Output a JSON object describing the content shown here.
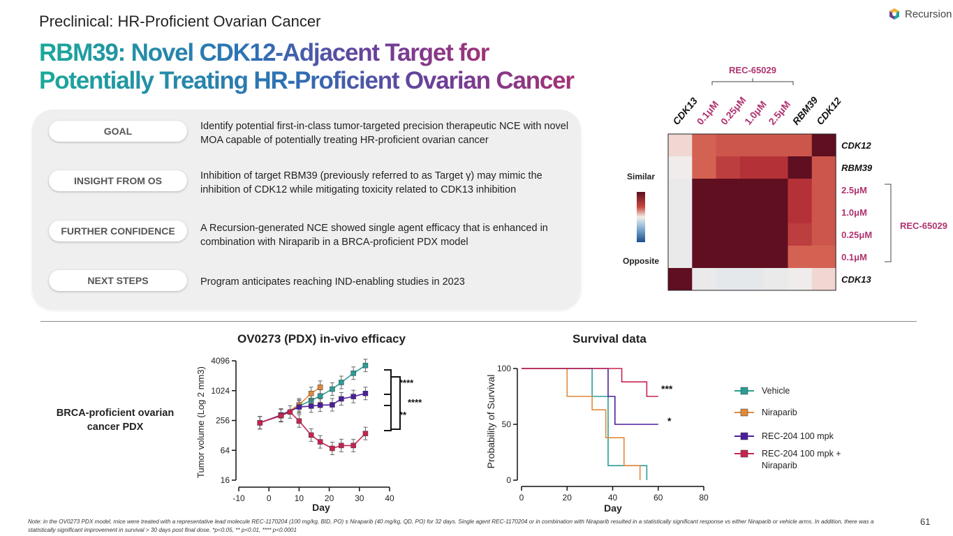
{
  "header": {
    "subtitle": "Preclinical: HR-Proficient Ovarian Cancer",
    "logo_text": "Recursion",
    "title_line1": "RBM39: Novel CDK12-Adjacent Target for",
    "title_line2": "Potentially Treating HR-Proficient Ovarian Cancer"
  },
  "panel": {
    "rows": [
      {
        "label": "GOAL",
        "text": "Identify potential first-in-class tumor-targeted precision therapeutic NCE with novel MOA capable of potentially treating HR-proficient ovarian cancer"
      },
      {
        "label": "INSIGHT FROM OS",
        "text": "Inhibition of target RBM39 (previously referred to as Target γ) may mimic the inhibition of CDK12 while mitigating toxicity related to CDK13 inhibition"
      },
      {
        "label": "FURTHER CONFIDENCE",
        "text": "A Recursion-generated NCE showed single agent efficacy that is enhanced in combination with Niraparib in a BRCA-proficient PDX model"
      },
      {
        "label": "NEXT STEPS",
        "text": "Program anticipates reaching IND-enabling studies in 2023"
      }
    ]
  },
  "sections": {
    "efficacy_title": "OV0273 (PDX) in-vivo efficacy",
    "survival_title": "Survival data",
    "brca_label": "BRCA-proficient ovarian cancer PDX"
  },
  "legend": {
    "items": [
      {
        "name": "Vehicle",
        "color": "#2a9d95"
      },
      {
        "name": "Niraparib",
        "color": "#e08a3a"
      },
      {
        "name": "REC-204 100 mpk",
        "color": "#4b1e9e"
      },
      {
        "name": "REC-204 100 mpk + Niraparib",
        "color": "#c7244f"
      }
    ]
  },
  "footer": {
    "note": "Note: in the OV0273 PDX model, mice were treated with a representative lead molecule REC-1170204 (100 mg/kg, BID, PO) ± Niraparib (40 mg/kg, QD, PO) for 32 days. Single agent REC-1170204 or in combination with Niraparib resulted in a statistically significant response vs either Niraparib or vehicle arms. In addition, there was a statistically significant improvement in survival > 30 days post final dose. *p<0.05, ** p<0.01, **** p<0.0001",
    "page_number": "61"
  },
  "chart_data": [
    {
      "type": "heatmap",
      "group_label_top": "REC-65029",
      "group_label_right": "REC-65029",
      "columns": [
        "CDK13",
        "0.1μM",
        "0.25μM",
        "1.0μM",
        "2.5μM",
        "RBM39",
        "CDK12"
      ],
      "rows": [
        "CDK12",
        "RBM39",
        "2.5μM",
        "1.0μM",
        "0.25μM",
        "0.1μM",
        "CDK13"
      ],
      "scale_labels": {
        "top": "Similar",
        "bottom": "Opposite"
      },
      "values": [
        [
          0.1,
          0.6,
          0.65,
          0.65,
          0.65,
          0.65,
          1.0
        ],
        [
          -0.05,
          0.6,
          0.75,
          0.8,
          0.8,
          1.0,
          0.65
        ],
        [
          -0.1,
          1.0,
          1.0,
          1.0,
          1.0,
          0.8,
          0.65
        ],
        [
          -0.1,
          1.0,
          1.0,
          1.0,
          1.0,
          0.8,
          0.65
        ],
        [
          -0.1,
          1.0,
          1.0,
          1.0,
          1.0,
          0.75,
          0.65
        ],
        [
          -0.1,
          1.0,
          1.0,
          1.0,
          1.0,
          0.6,
          0.6
        ],
        [
          1.0,
          -0.1,
          -0.15,
          -0.15,
          -0.1,
          -0.05,
          0.1
        ]
      ]
    },
    {
      "type": "line",
      "xlabel": "Day",
      "ylabel": "Tumor volume (Log 2 mm3)",
      "xlim": [
        -10,
        40
      ],
      "xticks": [
        -10,
        0,
        10,
        20,
        30,
        40
      ],
      "yticks": [
        16,
        64,
        256,
        1024,
        4096
      ],
      "ylim": [
        16,
        4096
      ],
      "log_y": true,
      "series": [
        {
          "name": "Vehicle",
          "color": "#2a9d95",
          "x": [
            -3,
            4,
            10,
            14,
            17,
            21,
            24,
            28,
            32
          ],
          "y": [
            230,
            330,
            500,
            650,
            800,
            1100,
            1500,
            2300,
            3300
          ]
        },
        {
          "name": "Niraparib",
          "color": "#e08a3a",
          "x": [
            -3,
            4,
            10,
            14,
            17
          ],
          "y": [
            230,
            320,
            530,
            900,
            1200
          ]
        },
        {
          "name": "REC-204 100 mpk",
          "color": "#4b1e9e",
          "x": [
            -3,
            4,
            10,
            14,
            17,
            21,
            24,
            28,
            32
          ],
          "y": [
            230,
            330,
            480,
            500,
            520,
            530,
            700,
            780,
            900
          ]
        },
        {
          "name": "REC-204 100 mpk + Niraparib",
          "color": "#c7244f",
          "x": [
            -3,
            4,
            7,
            10,
            14,
            17,
            21,
            24,
            28,
            32
          ],
          "y": [
            230,
            320,
            380,
            250,
            130,
            95,
            70,
            80,
            80,
            140
          ]
        }
      ],
      "annotations": [
        "****",
        "**",
        "****"
      ]
    },
    {
      "type": "line",
      "xlabel": "Day",
      "ylabel": "Probability of Survival",
      "xlim": [
        0,
        80
      ],
      "ylim": [
        0,
        100
      ],
      "xticks": [
        0,
        20,
        40,
        60,
        80
      ],
      "yticks": [
        0,
        50,
        100
      ],
      "series": [
        {
          "name": "Vehicle",
          "color": "#2a9d95",
          "x": [
            0,
            31,
            31,
            38,
            38,
            55,
            55
          ],
          "y": [
            100,
            100,
            75,
            75,
            13,
            13,
            0
          ]
        },
        {
          "name": "Niraparib",
          "color": "#e08a3a",
          "x": [
            0,
            20,
            20,
            31,
            31,
            37,
            37,
            45,
            45,
            52,
            52
          ],
          "y": [
            100,
            100,
            75,
            75,
            63,
            63,
            38,
            38,
            13,
            13,
            0
          ]
        },
        {
          "name": "REC-204 100 mpk",
          "color": "#4b1e9e",
          "x": [
            0,
            38,
            38,
            41,
            41,
            60
          ],
          "y": [
            100,
            100,
            75,
            75,
            50,
            50
          ]
        },
        {
          "name": "REC-204 100 mpk + Niraparib",
          "color": "#c7244f",
          "x": [
            0,
            44,
            44,
            55,
            55,
            60
          ],
          "y": [
            100,
            100,
            88,
            88,
            75,
            75
          ]
        }
      ],
      "annotations": [
        "***",
        "*"
      ]
    }
  ]
}
